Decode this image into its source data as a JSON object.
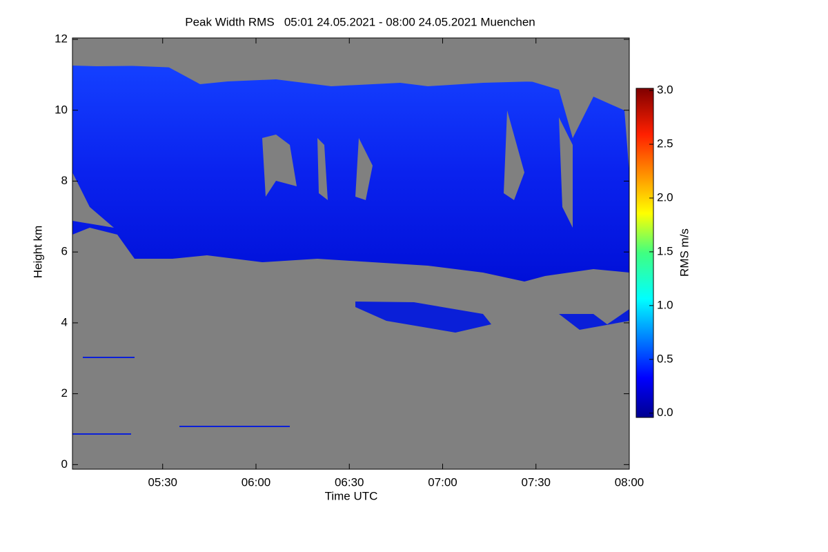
{
  "chart_data": {
    "type": "heatmap",
    "title": "Peak Width RMS   05:01 24.05.2021 - 08:00 24.05.2021 Muenchen",
    "xlabel": "Time UTC",
    "ylabel": "Height km",
    "xlim": [
      301,
      480
    ],
    "xticks": [
      {
        "value": 330,
        "label": "05:30"
      },
      {
        "value": 360,
        "label": "06:00"
      },
      {
        "value": 390,
        "label": "06:30"
      },
      {
        "value": 420,
        "label": "07:00"
      },
      {
        "value": 450,
        "label": "07:30"
      },
      {
        "value": 480,
        "label": "08:00"
      }
    ],
    "ylim": [
      -0.13,
      12.04
    ],
    "yticks": [
      0,
      2,
      4,
      6,
      8,
      10,
      12
    ],
    "background": "#808080",
    "colorbar": {
      "label": "RMS m/s",
      "lim": [
        -0.04,
        3.02
      ],
      "ticks": [
        {
          "value": 0,
          "label": "0.0"
        },
        {
          "value": 0.5,
          "label": "0.5"
        },
        {
          "value": 1,
          "label": "1.0"
        },
        {
          "value": 1.5,
          "label": "1.5"
        },
        {
          "value": 2,
          "label": "2.0"
        },
        {
          "value": 2.5,
          "label": "2.5"
        },
        {
          "value": 3,
          "label": "3.0"
        }
      ]
    }
  }
}
